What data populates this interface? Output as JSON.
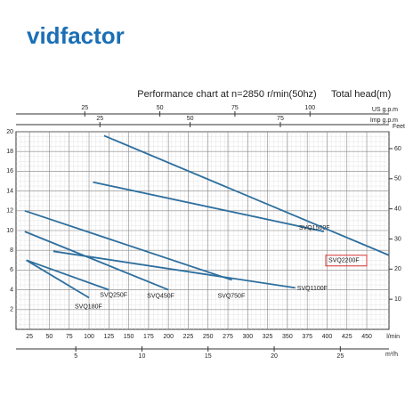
{
  "logo": "vidfactor",
  "chart_data": {
    "type": "line",
    "title": "Performance chart at n=2850 r/min(50hz)",
    "y_label": "Total head(m)",
    "ylim": [
      0,
      20
    ],
    "yticks": [
      2,
      4,
      6,
      8,
      10,
      12,
      14,
      16,
      18,
      20
    ],
    "y2_label": "Feet",
    "y2lim": [
      0,
      65.6
    ],
    "y2ticks": [
      10,
      20,
      30,
      40,
      50,
      60
    ],
    "x_label": "l/min",
    "xlim": [
      8,
      478
    ],
    "xticks": [
      25,
      50,
      75,
      100,
      125,
      150,
      175,
      200,
      225,
      250,
      275,
      300,
      325,
      350,
      375,
      400,
      425,
      450
    ],
    "x_bottom2": {
      "label": "m³/h",
      "lim": [
        0.48,
        28.68
      ],
      "ticks": [
        5,
        10,
        15,
        20,
        25
      ]
    },
    "x_top": [
      {
        "label": "US g.p.m",
        "lim": [
          2.1,
          126.3
        ],
        "ticks": [
          25,
          50,
          75,
          100
        ]
      },
      {
        "label": "Imp g.p.m",
        "lim": [
          1.76,
          105.1
        ],
        "ticks": [
          25,
          50,
          75
        ]
      }
    ],
    "grid": true,
    "highlighted_series": 6,
    "series": [
      {
        "name": "SVQ180F",
        "color": "#2e6f9e",
        "x": [
          21,
          100
        ],
        "values": [
          7,
          3.2
        ]
      },
      {
        "name": "SVQ250F",
        "color": "#2e6f9e",
        "x": [
          21,
          125
        ],
        "values": [
          7,
          4
        ]
      },
      {
        "name": "SVQ450F",
        "color": "#2e6f9e",
        "x": [
          19,
          200
        ],
        "values": [
          9.9,
          4
        ]
      },
      {
        "name": "SVQ750F",
        "color": "#2e6f9e",
        "x": [
          19,
          280
        ],
        "values": [
          12,
          5
        ]
      },
      {
        "name": "SVQ1100F",
        "color": "#2e6f9e",
        "x": [
          55,
          360
        ],
        "values": [
          7.9,
          4.2
        ]
      },
      {
        "name": "SVQ1500F",
        "color": "#2e6f9e",
        "x": [
          105,
          396
        ],
        "values": [
          14.9,
          9.9
        ]
      },
      {
        "name": "SVQ2200F",
        "color": "#2e6f9e",
        "x": [
          119,
          478
        ],
        "values": [
          19.6,
          7.5
        ]
      }
    ]
  }
}
